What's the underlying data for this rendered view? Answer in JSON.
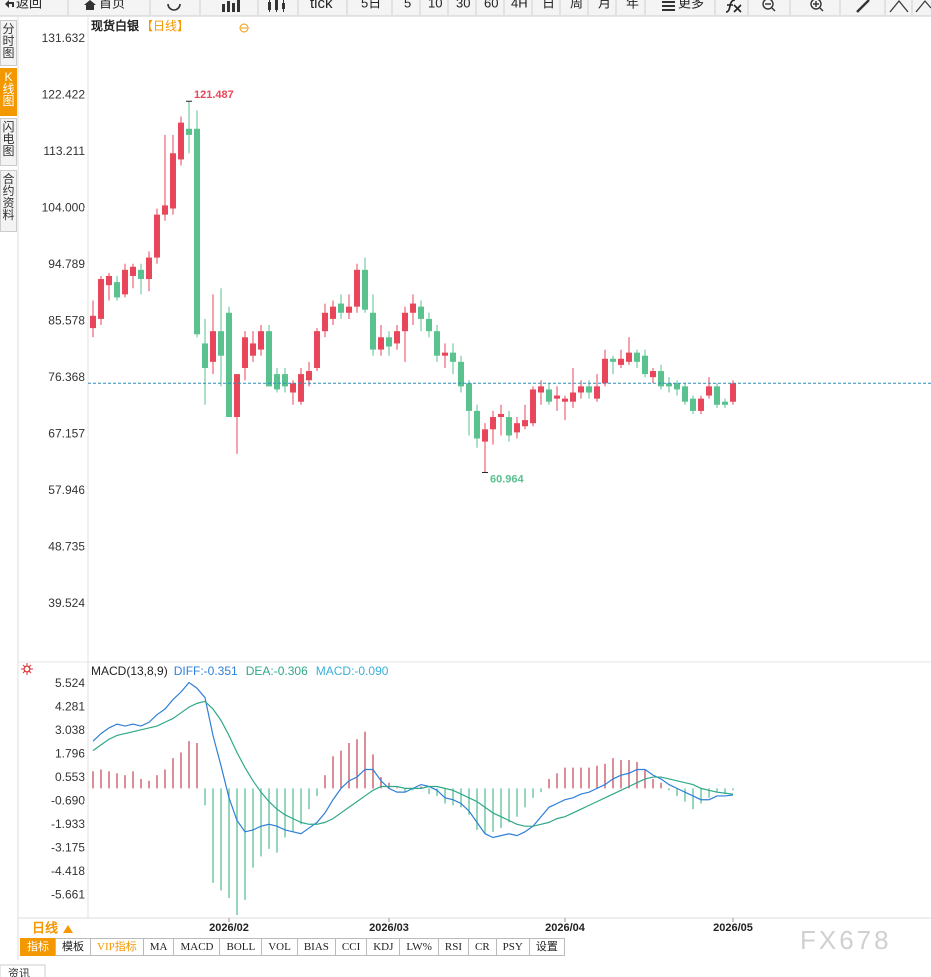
{
  "toolbar": {
    "items": [
      "返回",
      "首页",
      "tick",
      "5日",
      "5",
      "10",
      "30",
      "60",
      "4H",
      "日",
      "周",
      "月",
      "年",
      "更多"
    ]
  },
  "sidebar": {
    "tabs": [
      "分时图",
      "K线图",
      "闪电图",
      "合约资料"
    ]
  },
  "chart_data": [
    {
      "type": "candlestick",
      "title": "现货白银",
      "subtitle": "【日线】",
      "up_color": "#e8465a",
      "down_color": "#59c28f",
      "last_line_color": "#2a8fbd",
      "ylim": [
        30.39,
        134.73
      ],
      "yticks": [
        131.632,
        122.422,
        113.211,
        {
          "value": 104,
          "label": "104.000"
        },
        94.789,
        85.578,
        76.368,
        67.157,
        57.946,
        48.735,
        39.524
      ],
      "open": [
        84.5,
        86,
        91.5,
        92,
        90,
        93,
        94,
        92.5,
        96,
        103,
        104,
        112,
        117,
        117,
        82,
        79,
        84,
        87,
        70,
        78,
        80,
        81,
        84,
        77,
        77,
        74,
        72.5,
        76,
        78,
        84,
        86,
        88.5,
        87,
        88,
        94,
        87,
        81,
        83,
        82,
        84,
        87,
        88,
        86,
        84,
        80,
        80.5,
        79,
        75.5,
        71,
        66,
        68,
        70,
        70,
        67.5,
        68.5,
        69,
        74,
        74.5,
        73,
        72.5,
        72.5,
        74,
        75,
        73,
        75.5,
        79.5,
        78.5,
        79,
        80.5,
        80,
        76.5,
        77.5,
        75.5,
        75.5,
        75,
        73,
        71,
        73.5,
        75,
        72.5,
        72.5
      ],
      "high": [
        89,
        93,
        93.5,
        93,
        95,
        95,
        95,
        97,
        104,
        116,
        116,
        119,
        121.487,
        120,
        86,
        90,
        91,
        88,
        77,
        84,
        84,
        85,
        85,
        78,
        78,
        76,
        78,
        79,
        84.5,
        88.5,
        89,
        90,
        90,
        95,
        96,
        90,
        85,
        84,
        85,
        88,
        90,
        89,
        87,
        85,
        82,
        82,
        80,
        76,
        72,
        69,
        71,
        72,
        71,
        70,
        72,
        75,
        76,
        75.5,
        75,
        73.5,
        78,
        76,
        76,
        77,
        81,
        80,
        81,
        83,
        81,
        81,
        78,
        78.5,
        76.5,
        76,
        75.5,
        73.5,
        73.5,
        76.5,
        75.5,
        73,
        76
      ],
      "low": [
        83,
        85,
        89,
        89,
        89.5,
        91,
        90,
        90.5,
        95,
        102,
        103,
        111,
        113,
        83,
        72,
        77,
        75,
        70,
        64,
        76,
        79,
        80,
        75,
        74,
        74,
        72,
        72,
        75,
        77.5,
        83,
        85,
        86,
        86,
        87,
        87,
        80,
        80,
        80,
        81,
        79,
        85,
        84,
        83,
        79,
        78,
        77,
        74,
        67,
        65,
        60.964,
        65.5,
        67,
        66,
        66.5,
        68,
        68.5,
        72,
        72,
        71,
        69.5,
        71.5,
        73,
        73,
        72.5,
        75,
        77,
        78,
        78.5,
        78,
        76.5,
        75.5,
        74.5,
        74,
        73.5,
        72,
        70.5,
        70.5,
        73,
        71.5,
        71.5,
        72
      ],
      "close": [
        86.5,
        92.5,
        93,
        89.5,
        94,
        94.5,
        92.5,
        96,
        103,
        104.5,
        113,
        118,
        116,
        83.5,
        78,
        84,
        80,
        70,
        77,
        83,
        82,
        84,
        75,
        74.5,
        75,
        75.5,
        77,
        77.5,
        84,
        87,
        88,
        87,
        88,
        94,
        87.5,
        81,
        83,
        81.5,
        84,
        87,
        88.5,
        86,
        84,
        80,
        80.5,
        79,
        75,
        71,
        66.5,
        68,
        70,
        70.5,
        67,
        69,
        69.5,
        74.5,
        75,
        72.5,
        73.5,
        73,
        74,
        75,
        74,
        75,
        79.5,
        79,
        79.5,
        80.5,
        79,
        77,
        77.5,
        75,
        75,
        74.5,
        72.5,
        71,
        73,
        75,
        72,
        72,
        75.5
      ]
    },
    {
      "type": "macd",
      "title": "MACD(13,8,9)",
      "up_color": "#c9505e",
      "down_color": "#5dbf95",
      "ylim": [
        -6.86,
        6.53
      ],
      "yticks": [
        5.524,
        4.281,
        3.038,
        1.796,
        0.553,
        {
          "value": -0.69,
          "label": "-0.690"
        },
        -1.933,
        -3.175,
        -4.418,
        -5.661
      ],
      "categories": [
        null,
        null,
        null,
        null,
        null,
        null,
        null,
        null,
        null,
        null,
        null,
        null,
        null,
        null,
        null,
        null,
        null,
        "2026/02",
        null,
        null,
        null,
        null,
        null,
        null,
        null,
        null,
        null,
        null,
        null,
        null,
        null,
        null,
        null,
        null,
        null,
        null,
        null,
        "2026/03",
        null,
        null,
        null,
        null,
        null,
        null,
        null,
        null,
        null,
        null,
        null,
        null,
        null,
        null,
        null,
        null,
        null,
        null,
        null,
        null,
        null,
        "2026/04",
        null,
        null,
        null,
        null,
        null,
        null,
        null,
        null,
        null,
        null,
        null,
        null,
        null,
        null,
        null,
        null,
        null,
        null,
        null,
        null,
        "2026/05"
      ],
      "series": [
        {
          "name": "DIFF:-0.351",
          "color": "#2f7fd8",
          "kind": "line",
          "values": [
            2.5,
            2.9,
            3.2,
            3.4,
            3.3,
            3.4,
            3.3,
            3.5,
            3.9,
            4.2,
            4.7,
            5.1,
            5.6,
            5.3,
            4.8,
            2.8,
            1.2,
            -0.5,
            -1.7,
            -2.3,
            -2.2,
            -2,
            -1.9,
            -2,
            -2.2,
            -2.3,
            -2.4,
            -2.1,
            -1.8,
            -1.3,
            -0.6,
            0,
            0.4,
            0.6,
            1,
            1,
            0.4,
            0,
            -0.2,
            -0.2,
            0,
            0.2,
            0.1,
            -0.1,
            -0.5,
            -0.6,
            -0.8,
            -1.2,
            -1.8,
            -2.4,
            -2.6,
            -2.5,
            -2.4,
            -2.5,
            -2.3,
            -2,
            -1.5,
            -1,
            -0.8,
            -0.6,
            -0.5,
            -0.3,
            -0.2,
            0,
            0.2,
            0.5,
            0.7,
            0.8,
            1,
            1,
            0.7,
            0.5,
            0.2,
            0,
            -0.2,
            -0.4,
            -0.6,
            -0.6,
            -0.4,
            -0.4,
            -0.351
          ]
        },
        {
          "name": "DEA:-0.306",
          "color": "#2fa88a",
          "kind": "line",
          "values": [
            2,
            2.3,
            2.6,
            2.8,
            2.9,
            3,
            3.1,
            3.2,
            3.3,
            3.5,
            3.7,
            4,
            4.3,
            4.5,
            4.6,
            4.2,
            3.6,
            2.8,
            1.9,
            1.1,
            0.4,
            -0.2,
            -0.7,
            -1.1,
            -1.4,
            -1.6,
            -1.8,
            -1.9,
            -1.9,
            -1.8,
            -1.6,
            -1.3,
            -1,
            -0.7,
            -0.4,
            -0.1,
            0.1,
            0.1,
            0.1,
            0,
            0,
            0,
            0.1,
            0.1,
            0,
            -0.1,
            -0.3,
            -0.5,
            -0.7,
            -1,
            -1.3,
            -1.5,
            -1.7,
            -1.9,
            -2,
            -2,
            -1.9,
            -1.8,
            -1.6,
            -1.5,
            -1.3,
            -1.1,
            -0.9,
            -0.7,
            -0.5,
            -0.3,
            -0.1,
            0.1,
            0.3,
            0.5,
            0.6,
            0.6,
            0.5,
            0.4,
            0.3,
            0.2,
            0,
            -0.1,
            -0.2,
            -0.25,
            -0.306
          ]
        },
        {
          "name": "MACD:-0.090",
          "color": "#3ab0d8",
          "kind": "bar",
          "values": [
            0.9,
            1,
            0.9,
            0.8,
            0.7,
            0.9,
            0.5,
            0.4,
            0.7,
            1,
            1.6,
            1.9,
            2.5,
            2.4,
            -0.9,
            -5,
            -5.4,
            -5.8,
            -6.7,
            -5.9,
            -4.2,
            -3.6,
            -3.2,
            -3.4,
            -2.6,
            -2.3,
            -1.9,
            -1.1,
            -0.4,
            0.7,
            1.7,
            2,
            2.4,
            2.6,
            3,
            1.8,
            0.6,
            0.3,
            0.05,
            -0.2,
            -0.1,
            0.1,
            -0.3,
            -0.4,
            -0.8,
            -0.9,
            -1,
            -1.4,
            -2.2,
            -2.4,
            -2.3,
            -2.1,
            -1.8,
            -1.5,
            -1,
            -0.5,
            -0.2,
            0.5,
            0.8,
            1.1,
            1.1,
            1.1,
            1.1,
            1.2,
            1.3,
            1.6,
            1.5,
            1.5,
            1.4,
            1,
            0.5,
            0.3,
            -0.1,
            -0.4,
            -0.7,
            -1.1,
            -0.8,
            -0.5,
            -0.2,
            -0.3,
            -0.1
          ]
        }
      ]
    }
  ],
  "period_tab": "日线",
  "indicator_tabs": [
    "指标",
    "模板",
    "VIP指标",
    "MA",
    "MACD",
    "BOLL",
    "VOL",
    "BIAS",
    "CCI",
    "KDJ",
    "LW%",
    "RSI",
    "CR",
    "PSY",
    "设置"
  ],
  "watermark": "FX678",
  "bottom_tab": "资讯"
}
